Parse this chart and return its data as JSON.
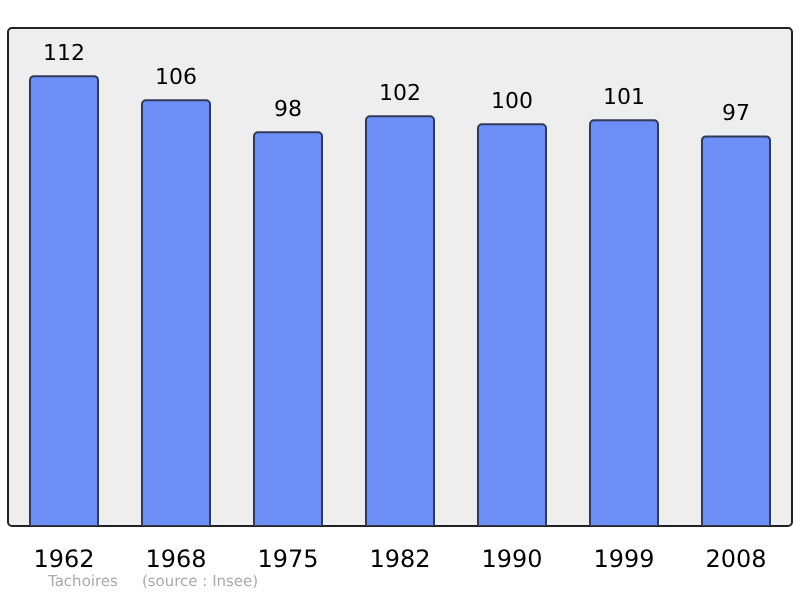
{
  "chart_data": {
    "type": "bar",
    "categories": [
      "1962",
      "1968",
      "1975",
      "1982",
      "1990",
      "1999",
      "2008"
    ],
    "values": [
      112,
      106,
      98,
      102,
      100,
      101,
      97
    ],
    "color": "#6b8ff7",
    "data_labels": true,
    "annotations": [
      "Tachoires",
      "(source : Insee)"
    ]
  }
}
